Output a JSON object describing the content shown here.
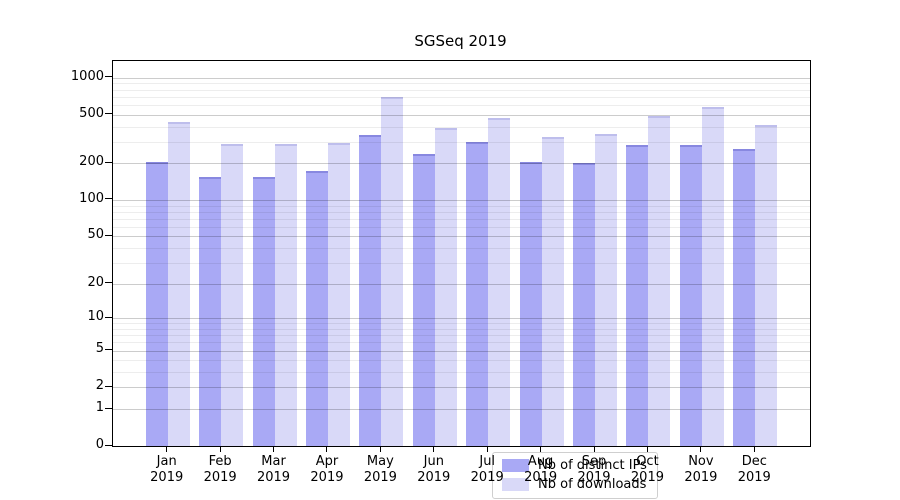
{
  "title": "SGSeq 2019",
  "colors": {
    "ips_bar": "#a9a9f5",
    "downloads_bar": "#d9d9f8",
    "axis": "#000000",
    "grid_major": "rgba(0,0,0,0.20)",
    "grid_minor": "rgba(0,0,0,0.07)"
  },
  "legend": {
    "ips_label": "Nb of distinct IPs",
    "downloads_label": "Nb of downloads"
  },
  "chart_data": {
    "type": "bar",
    "title": "SGSeq 2019",
    "months": [
      "Jan",
      "Feb",
      "Mar",
      "Apr",
      "May",
      "Jun",
      "Jul",
      "Aug",
      "Sep",
      "Oct",
      "Nov",
      "Dec"
    ],
    "year": "2019",
    "categories": [
      "Jan 2019",
      "Feb 2019",
      "Mar 2019",
      "Apr 2019",
      "May 2019",
      "Jun 2019",
      "Jul 2019",
      "Aug 2019",
      "Sep 2019",
      "Oct 2019",
      "Nov 2019",
      "Dec 2019"
    ],
    "series": [
      {
        "name": "Nb of distinct IPs",
        "color": "#a9a9f5",
        "values": [
          206,
          153,
          155,
          173,
          340,
          237,
          300,
          205,
          201,
          281,
          282,
          260
        ]
      },
      {
        "name": "Nb of downloads",
        "color": "#d9d9f8",
        "values": [
          436,
          285,
          286,
          291,
          697,
          386,
          466,
          329,
          350,
          487,
          577,
          413
        ]
      }
    ],
    "xlabel": "",
    "ylabel": "",
    "y_scale": "log10(value+1)",
    "y_ticks": [
      0,
      1,
      2,
      5,
      10,
      20,
      50,
      100,
      200,
      500,
      1000
    ],
    "y_minor_gridlines": [
      3,
      4,
      6,
      7,
      8,
      9,
      30,
      40,
      60,
      70,
      80,
      90,
      300,
      400,
      600,
      700,
      800,
      900
    ],
    "y_max": 1368,
    "grid": true,
    "legend_position": "inside-bottom-center"
  }
}
